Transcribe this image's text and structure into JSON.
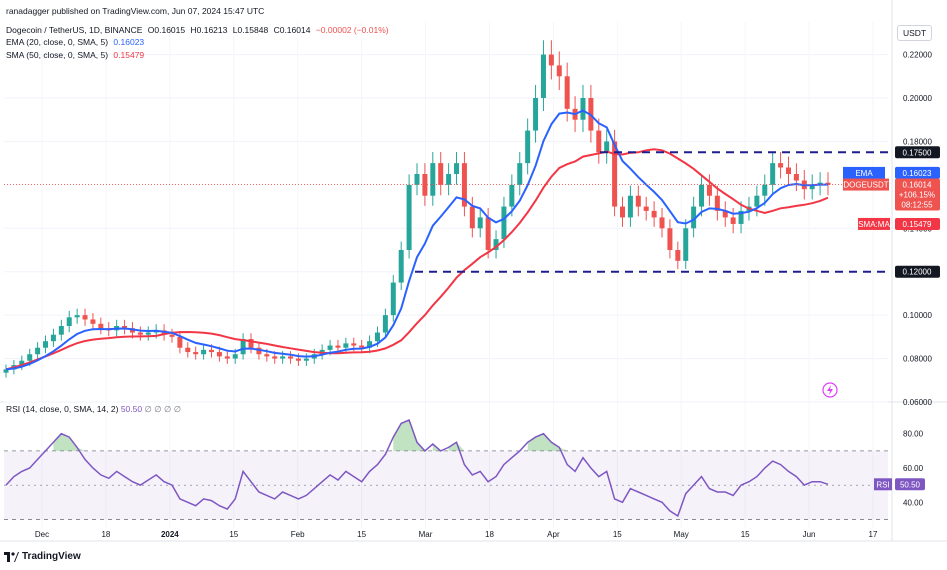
{
  "header": {
    "publisher": "ranadagger published on TradingView.com, Jun 07, 2024 15:47 UTC",
    "symbol_line": "Dogecoin / TetherUS, 1D, BINANCE",
    "ohlc": {
      "o_label": "O",
      "o": "0.16015",
      "h_label": "H",
      "h": "0.16213",
      "l_label": "L",
      "l": "0.15848",
      "c_label": "C",
      "c": "0.16014",
      "change": "−0.00002 (−0.01%)"
    },
    "ema_line": {
      "label": "EMA (20, close, 0, SMA, 5)",
      "value": "0.16023"
    },
    "sma_line": {
      "label": "SMA (50, close, 0, SMA, 5)",
      "value": "0.15479"
    }
  },
  "currency_button": "USDT",
  "rsi_header": {
    "label": "RSI (14, close, 0, SMA, 14, 2)",
    "value": "50.50",
    "extra": "∅ ∅ ∅ ∅"
  },
  "footer_logo": "TradingView",
  "colors": {
    "up": "#26a69a",
    "down": "#ef5350",
    "ema": "#2962ff",
    "sma": "#f23645",
    "rsi": "#7e57c2",
    "level": "#1e1e8c",
    "rsi_fill": "#7e57c2"
  },
  "chart_data": {
    "type": "candlestick",
    "title": "Dogecoin / TetherUS, 1D, BINANCE",
    "x_tick_labels": [
      "Dec",
      "18",
      "2024",
      "15",
      "Feb",
      "15",
      "Mar",
      "18",
      "Apr",
      "15",
      "May",
      "15",
      "Jun",
      "17"
    ],
    "y_ticks": [
      "0.22000",
      "0.20000",
      "0.18000",
      "0.14000",
      "0.12000",
      "0.10000",
      "0.08000",
      "0.06000"
    ],
    "ylim": [
      0.06,
      0.235
    ],
    "horizontal_levels": [
      {
        "value": 0.175,
        "label": "0.17500"
      },
      {
        "value": 0.12,
        "label": "0.12000"
      }
    ],
    "price_labels": [
      {
        "name": "EMA",
        "value": "0.16023"
      },
      {
        "name": "DOGEUSDT",
        "value": "0.16014",
        "change": "+106.15%",
        "countdown": "08:12:55"
      },
      {
        "name": "SMA:MA",
        "value": "0.15479"
      }
    ],
    "close_series_approx": [
      0.075,
      0.077,
      0.079,
      0.082,
      0.085,
      0.088,
      0.091,
      0.095,
      0.099,
      0.1,
      0.098,
      0.096,
      0.094,
      0.093,
      0.095,
      0.094,
      0.092,
      0.091,
      0.092,
      0.093,
      0.091,
      0.09,
      0.085,
      0.083,
      0.082,
      0.084,
      0.083,
      0.081,
      0.08,
      0.082,
      0.089,
      0.085,
      0.082,
      0.081,
      0.08,
      0.081,
      0.08,
      0.079,
      0.08,
      0.082,
      0.084,
      0.086,
      0.085,
      0.087,
      0.086,
      0.085,
      0.088,
      0.092,
      0.1,
      0.115,
      0.13,
      0.16,
      0.165,
      0.155,
      0.17,
      0.16,
      0.165,
      0.17,
      0.15,
      0.14,
      0.145,
      0.13,
      0.135,
      0.15,
      0.16,
      0.17,
      0.185,
      0.2,
      0.22,
      0.215,
      0.21,
      0.195,
      0.19,
      0.2,
      0.185,
      0.175,
      0.18,
      0.15,
      0.145,
      0.155,
      0.15,
      0.148,
      0.145,
      0.14,
      0.13,
      0.125,
      0.14,
      0.15,
      0.16,
      0.155,
      0.148,
      0.145,
      0.142,
      0.148,
      0.15,
      0.155,
      0.16,
      0.17,
      0.168,
      0.165,
      0.162,
      0.158,
      0.16,
      0.161,
      0.16
    ],
    "ema20": {
      "value": 0.16023
    },
    "sma50": {
      "value": 0.15479
    },
    "rsi": {
      "label": "RSI (14, close, 0, SMA, 14, 2)",
      "value": 50.5,
      "ticks": [
        "80.00",
        "60.00",
        "40.00"
      ],
      "bands": [
        70,
        30
      ],
      "ylim": [
        25,
        95
      ],
      "series_approx": [
        50,
        55,
        58,
        60,
        65,
        70,
        75,
        80,
        78,
        72,
        65,
        60,
        56,
        54,
        58,
        55,
        52,
        50,
        53,
        56,
        52,
        50,
        42,
        40,
        38,
        42,
        41,
        38,
        36,
        42,
        58,
        52,
        46,
        44,
        42,
        46,
        44,
        42,
        44,
        48,
        52,
        56,
        53,
        58,
        55,
        52,
        58,
        62,
        68,
        78,
        86,
        88,
        75,
        70,
        74,
        70,
        72,
        75,
        62,
        56,
        58,
        52,
        55,
        62,
        66,
        70,
        75,
        78,
        80,
        75,
        72,
        62,
        58,
        66,
        60,
        55,
        58,
        42,
        40,
        48,
        46,
        44,
        42,
        40,
        35,
        32,
        45,
        50,
        55,
        48,
        46,
        46,
        44,
        50,
        52,
        55,
        60,
        64,
        62,
        58,
        55,
        50,
        52,
        52,
        50.5
      ]
    }
  }
}
